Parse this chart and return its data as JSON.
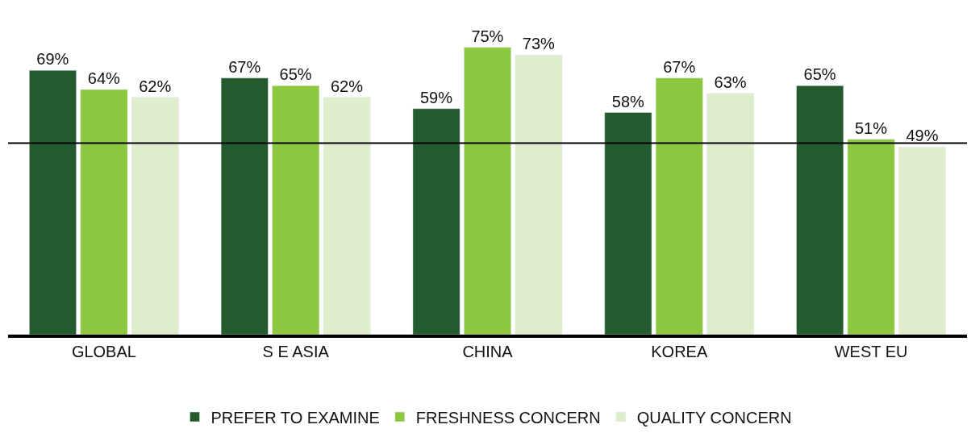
{
  "chart_data": {
    "type": "bar",
    "categories": [
      "GLOBAL",
      "S E ASIA",
      "CHINA",
      "KOREA",
      "WEST EU"
    ],
    "series": [
      {
        "name": "PREFER TO EXAMINE",
        "color": "#235a2e",
        "values": [
          69,
          67,
          59,
          58,
          65
        ],
        "value_labels": [
          "69%",
          "67%",
          "59%",
          "58%",
          "65%"
        ]
      },
      {
        "name": "FRESHNESS CONCERN",
        "color": "#8dc63f",
        "values": [
          64,
          65,
          75,
          67,
          51
        ],
        "value_labels": [
          "64%",
          "65%",
          "75%",
          "67%",
          "51%"
        ]
      },
      {
        "name": "QUALITY CONCERN",
        "color": "#e0edcc",
        "values": [
          62,
          62,
          73,
          63,
          49
        ],
        "value_labels": [
          "62%",
          "62%",
          "73%",
          "63%",
          "49%"
        ]
      }
    ],
    "ref_lines": [
      {
        "axis": "y",
        "value": 50,
        "color": "#000000",
        "line_style": "solid"
      }
    ],
    "legend": "bottom",
    "tick_labels": "x"
  }
}
